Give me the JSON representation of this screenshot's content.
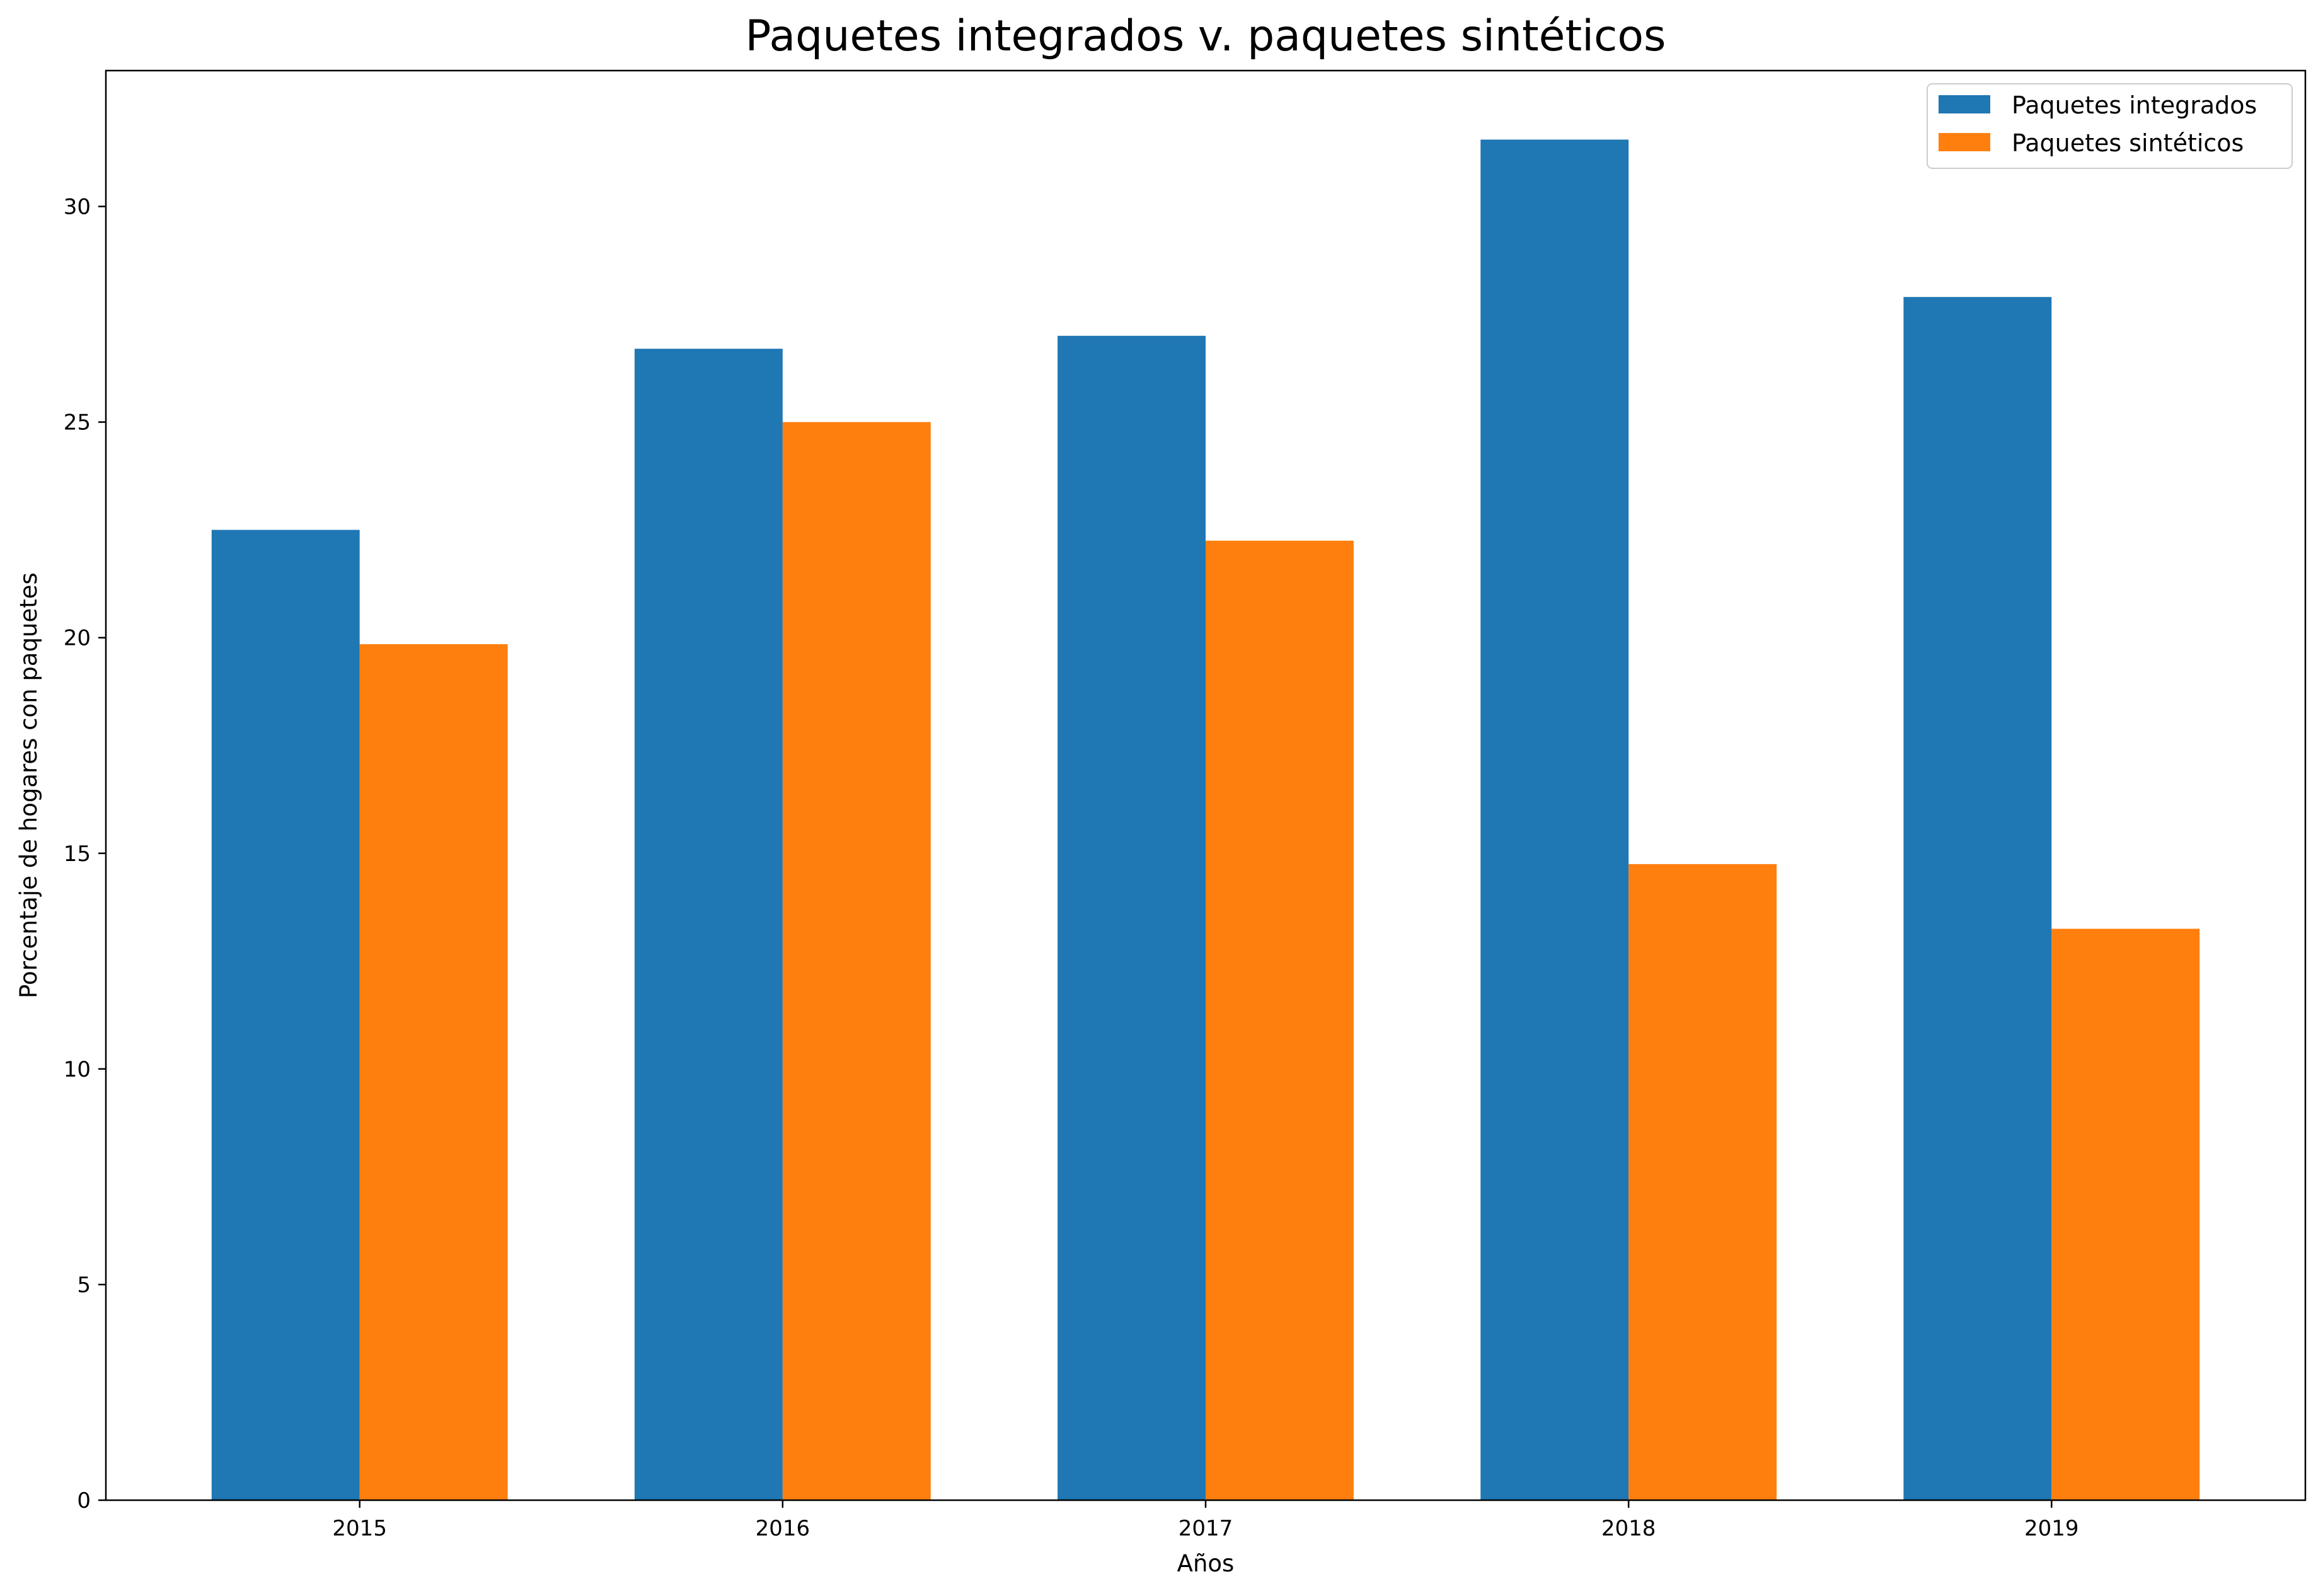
{
  "chart_data": {
    "type": "bar",
    "title": "Paquetes integrados v. paquetes sintéticos",
    "xlabel": "Años",
    "ylabel": "Porcentaje de hogares con paquetes",
    "categories": [
      "2015",
      "2016",
      "2017",
      "2018",
      "2019"
    ],
    "series": [
      {
        "name": "Paquetes integrados",
        "color": "#1f77b4",
        "values": [
          22.5,
          26.7,
          27.0,
          31.55,
          27.9
        ]
      },
      {
        "name": "Paquetes sintéticos",
        "color": "#ff7f0e",
        "values": [
          19.85,
          25.0,
          22.25,
          14.75,
          13.25
        ]
      }
    ],
    "ylim": [
      0,
      33.15
    ],
    "yticks": [
      0,
      5,
      10,
      15,
      20,
      25,
      30
    ],
    "grid": false,
    "legend_position": "top-right"
  }
}
